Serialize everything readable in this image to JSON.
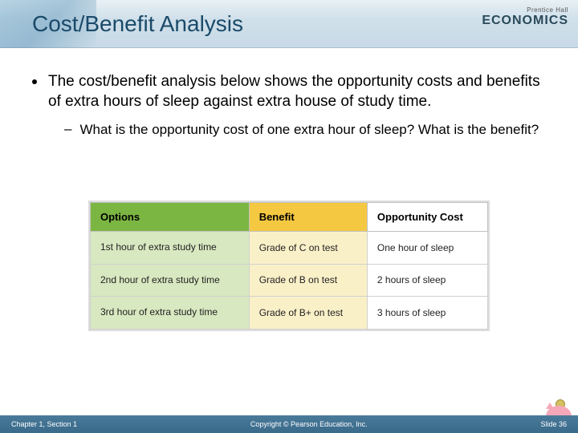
{
  "header": {
    "title": "Cost/Benefit Analysis",
    "brand_top": "Prentice Hall",
    "brand_main": "ECONOMICS",
    "title_color": "#1a4a6a",
    "bg_gradient": [
      "#e8f0f5",
      "#c8dae6"
    ]
  },
  "bullets": {
    "main": "The cost/benefit analysis below shows the opportunity costs and benefits of extra hours of sleep against extra house of study time.",
    "sub": "What is the opportunity cost of one extra hour of sleep? What is the benefit?"
  },
  "table": {
    "columns": [
      {
        "label": "Options",
        "bg": "#7bb642",
        "cell_bg": "#d8e8c0"
      },
      {
        "label": "Benefit",
        "bg": "#f5c842",
        "cell_bg": "#faf0c8"
      },
      {
        "label": "Opportunity Cost",
        "bg": "#ffffff",
        "cell_bg": "#ffffff"
      }
    ],
    "rows": [
      [
        "1st hour of extra study time",
        "Grade of C on test",
        "One hour of sleep"
      ],
      [
        "2nd hour of extra study time",
        "Grade of B on test",
        "2 hours of sleep"
      ],
      [
        "3rd hour of extra study time",
        "Grade of B+ on test",
        "3 hours of sleep"
      ]
    ],
    "border_color": "#d0d0d0",
    "font_size": 12
  },
  "footer": {
    "left": "Chapter 1, Section 1",
    "center": "Copyright © Pearson Education, Inc.",
    "right": "Slide 36",
    "bg": "#3a6a8a"
  }
}
